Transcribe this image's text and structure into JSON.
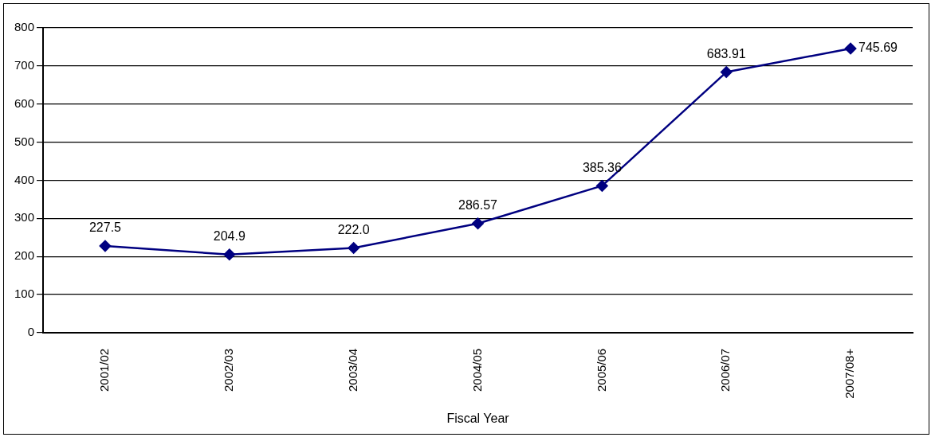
{
  "chart_data": {
    "type": "line",
    "xlabel": "Fiscal Year",
    "categories": [
      "2001/02",
      "2002/03",
      "2003/04",
      "2004/05",
      "2005/06",
      "2006/07",
      "2007/08+"
    ],
    "series": [
      {
        "color": "#000080",
        "values": [
          227.5,
          204.9,
          222.0,
          286.57,
          385.36,
          683.91,
          745.69
        ],
        "value_labels": [
          "227.5",
          "204.9",
          "222.0",
          "286.57",
          "385.36",
          "683.91",
          "745.69"
        ]
      }
    ],
    "ylim": [
      0,
      800
    ],
    "yticks": [
      0,
      100,
      200,
      300,
      400,
      500,
      600,
      700,
      800
    ],
    "grid": "y",
    "legend": false,
    "marker": "diamond",
    "line_style": "solid"
  }
}
